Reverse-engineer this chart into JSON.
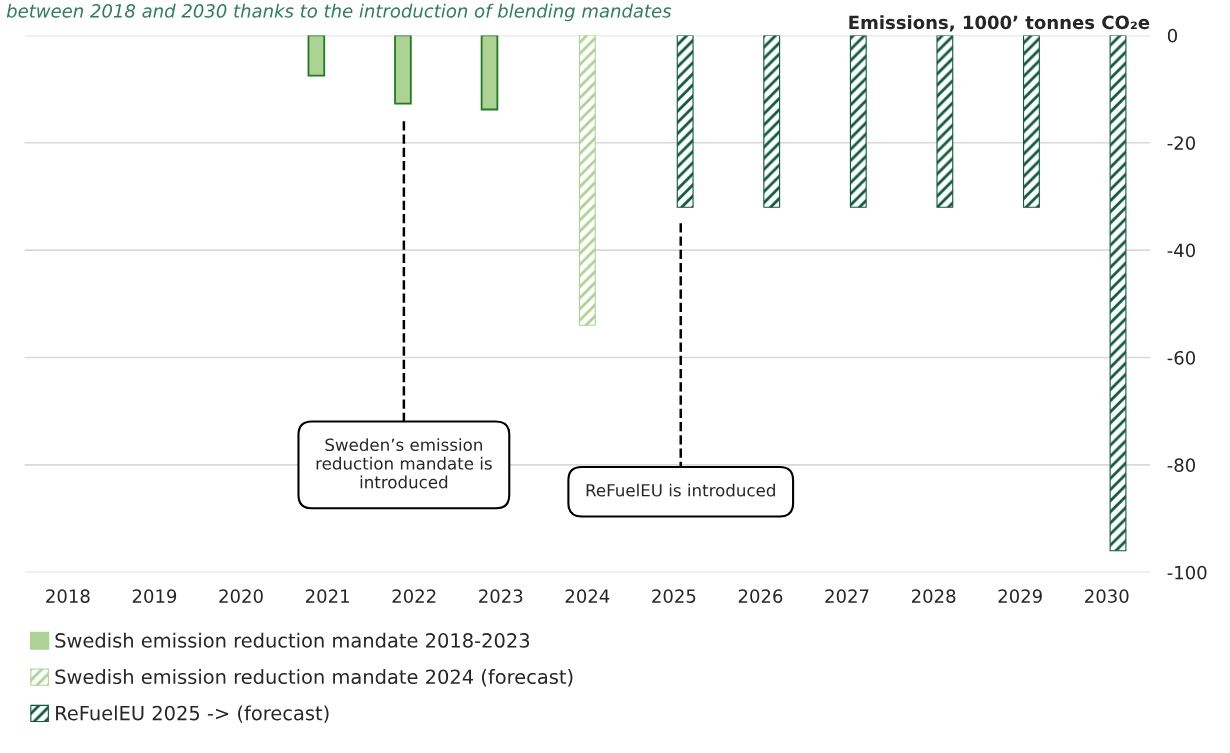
{
  "chart_data": {
    "type": "bar",
    "subtitle": "between 2018 and 2030 thanks to the introduction of blending mandates",
    "ylabel": "Emissions, 1000’ tonnes CO₂e",
    "categories": [
      "2018",
      "2019",
      "2020",
      "2021",
      "2022",
      "2023",
      "2024",
      "2025",
      "2026",
      "2027",
      "2028",
      "2029",
      "2030"
    ],
    "series": [
      {
        "name": "Swedish emission reduction mandate 2018-2023",
        "color": "#acd394",
        "values": [
          null,
          null,
          null,
          -7.5,
          -12.7,
          -13.8,
          null,
          null,
          null,
          null,
          null,
          null,
          null
        ]
      },
      {
        "name": "Swedish emission reduction mandate 2024 (forecast)",
        "color": "#acd394",
        "values": [
          null,
          null,
          null,
          null,
          null,
          null,
          -54,
          null,
          null,
          null,
          null,
          null,
          null
        ]
      },
      {
        "name": "ReFuelEU 2025 -> (forecast)",
        "color": "#0f5a3c",
        "values": [
          null,
          null,
          null,
          null,
          null,
          null,
          null,
          -32,
          -32,
          -32,
          -32,
          -32,
          -96
        ]
      }
    ],
    "ylim": [
      -100,
      0
    ],
    "yticks": [
      0,
      -20,
      -40,
      -60,
      -80,
      -100
    ],
    "grid": "y",
    "legend": "bottom",
    "annotations": [
      "Sweden’s emission\nreduction mandate is\nintroduced",
      "ReFuelEU is introduced"
    ]
  }
}
